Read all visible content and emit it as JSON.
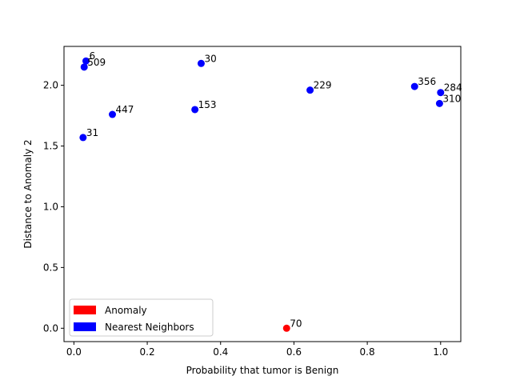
{
  "chart_data": {
    "type": "scatter",
    "xlabel": "Probability that tumor is Benign",
    "ylabel": "Distance to Anomaly 2",
    "xlim": [
      -0.027,
      1.055
    ],
    "ylim": [
      -0.11,
      2.32
    ],
    "xticks": [
      "0.0",
      "0.2",
      "0.4",
      "0.6",
      "0.8",
      "1.0"
    ],
    "xtick_values": [
      0.0,
      0.2,
      0.4,
      0.6,
      0.8,
      1.0
    ],
    "yticks": [
      "0.0",
      "0.5",
      "1.0",
      "1.5",
      "2.0"
    ],
    "ytick_values": [
      0.0,
      0.5,
      1.0,
      1.5,
      2.0
    ],
    "grid": false,
    "legend_position": "lower-left",
    "series": [
      {
        "name": "Anomaly",
        "color": "#ff0000",
        "points": [
          {
            "x": 0.58,
            "y": 0.0,
            "label": "70"
          }
        ]
      },
      {
        "name": "Nearest Neighbors",
        "color": "#0000ff",
        "points": [
          {
            "x": 0.033,
            "y": 2.2,
            "label": "6"
          },
          {
            "x": 0.028,
            "y": 2.15,
            "label": "509"
          },
          {
            "x": 0.347,
            "y": 2.18,
            "label": "30"
          },
          {
            "x": 0.644,
            "y": 1.96,
            "label": "229"
          },
          {
            "x": 0.929,
            "y": 1.99,
            "label": "356"
          },
          {
            "x": 1.0,
            "y": 1.94,
            "label": "284"
          },
          {
            "x": 0.997,
            "y": 1.85,
            "label": "310"
          },
          {
            "x": 0.105,
            "y": 1.76,
            "label": "447"
          },
          {
            "x": 0.33,
            "y": 1.8,
            "label": "153"
          },
          {
            "x": 0.025,
            "y": 1.57,
            "label": "31"
          }
        ]
      }
    ]
  }
}
